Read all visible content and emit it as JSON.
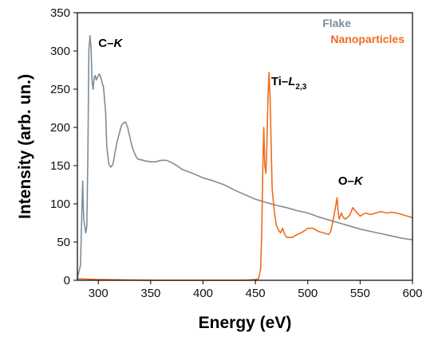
{
  "chart_data": {
    "type": "line",
    "xlabel": "Energy (eV)",
    "ylabel": "Intensity (arb. un.)",
    "xlim": [
      280,
      600
    ],
    "ylim": [
      0,
      350
    ],
    "x_ticks": [
      300,
      350,
      400,
      450,
      500,
      550,
      600
    ],
    "y_ticks": [
      0,
      50,
      100,
      150,
      200,
      250,
      300,
      350
    ],
    "legend_position": "top-right",
    "grid": false,
    "series": [
      {
        "name": "Flake",
        "color": "#7f8c99",
        "points": [
          [
            280,
            3
          ],
          [
            283,
            20
          ],
          [
            285,
            130
          ],
          [
            286,
            80
          ],
          [
            288,
            62
          ],
          [
            289,
            70
          ],
          [
            290,
            160
          ],
          [
            291,
            300
          ],
          [
            292,
            320
          ],
          [
            293,
            305
          ],
          [
            294,
            260
          ],
          [
            295,
            250
          ],
          [
            296,
            265
          ],
          [
            297,
            268
          ],
          [
            298,
            262
          ],
          [
            300,
            268
          ],
          [
            301,
            270
          ],
          [
            303,
            262
          ],
          [
            305,
            252
          ],
          [
            307,
            220
          ],
          [
            308,
            175
          ],
          [
            310,
            152
          ],
          [
            312,
            148
          ],
          [
            314,
            152
          ],
          [
            316,
            168
          ],
          [
            318,
            182
          ],
          [
            320,
            192
          ],
          [
            322,
            202
          ],
          [
            324,
            206
          ],
          [
            326,
            207
          ],
          [
            328,
            200
          ],
          [
            330,
            188
          ],
          [
            332,
            176
          ],
          [
            334,
            168
          ],
          [
            336,
            162
          ],
          [
            338,
            158
          ],
          [
            340,
            158
          ],
          [
            345,
            156
          ],
          [
            350,
            155
          ],
          [
            355,
            155
          ],
          [
            360,
            157
          ],
          [
            365,
            157
          ],
          [
            370,
            154
          ],
          [
            375,
            150
          ],
          [
            380,
            145
          ],
          [
            390,
            140
          ],
          [
            400,
            134
          ],
          [
            410,
            130
          ],
          [
            420,
            125
          ],
          [
            430,
            118
          ],
          [
            440,
            112
          ],
          [
            450,
            106
          ],
          [
            460,
            102
          ],
          [
            470,
            98
          ],
          [
            480,
            95
          ],
          [
            490,
            91
          ],
          [
            500,
            88
          ],
          [
            510,
            83
          ],
          [
            520,
            79
          ],
          [
            530,
            75
          ],
          [
            540,
            71
          ],
          [
            550,
            67
          ],
          [
            560,
            64
          ],
          [
            570,
            61
          ],
          [
            580,
            58
          ],
          [
            590,
            55
          ],
          [
            600,
            53
          ]
        ]
      },
      {
        "name": "Nanoparticles",
        "color": "#ef6c1c",
        "points": [
          [
            280,
            2
          ],
          [
            300,
            1
          ],
          [
            350,
            0
          ],
          [
            400,
            0
          ],
          [
            440,
            0
          ],
          [
            450,
            1
          ],
          [
            453,
            2
          ],
          [
            455,
            15
          ],
          [
            456,
            60
          ],
          [
            457,
            140
          ],
          [
            458,
            200
          ],
          [
            459,
            150
          ],
          [
            460,
            140
          ],
          [
            461,
            180
          ],
          [
            462,
            240
          ],
          [
            463,
            272
          ],
          [
            464,
            240
          ],
          [
            465,
            180
          ],
          [
            466,
            120
          ],
          [
            468,
            90
          ],
          [
            470,
            72
          ],
          [
            472,
            66
          ],
          [
            474,
            62
          ],
          [
            476,
            68
          ],
          [
            478,
            60
          ],
          [
            480,
            56
          ],
          [
            485,
            56
          ],
          [
            490,
            60
          ],
          [
            495,
            63
          ],
          [
            500,
            68
          ],
          [
            505,
            68
          ],
          [
            510,
            64
          ],
          [
            515,
            62
          ],
          [
            520,
            60
          ],
          [
            522,
            64
          ],
          [
            524,
            78
          ],
          [
            526,
            92
          ],
          [
            527,
            100
          ],
          [
            528,
            108
          ],
          [
            529,
            90
          ],
          [
            530,
            80
          ],
          [
            532,
            88
          ],
          [
            534,
            82
          ],
          [
            536,
            80
          ],
          [
            540,
            85
          ],
          [
            543,
            95
          ],
          [
            546,
            90
          ],
          [
            550,
            84
          ],
          [
            555,
            88
          ],
          [
            560,
            86
          ],
          [
            565,
            88
          ],
          [
            570,
            90
          ],
          [
            575,
            88
          ],
          [
            580,
            89
          ],
          [
            585,
            88
          ],
          [
            590,
            86
          ],
          [
            595,
            84
          ],
          [
            600,
            82
          ]
        ]
      }
    ],
    "annotations": [
      {
        "text": "C–",
        "italic_part": "K",
        "x": 300,
        "y": 305
      },
      {
        "text": "Ti–",
        "italic_part": "L",
        "subscript": "2,3",
        "x": 465,
        "y": 255
      },
      {
        "text": "O–",
        "italic_part": "K",
        "x": 529,
        "y": 125
      }
    ]
  }
}
